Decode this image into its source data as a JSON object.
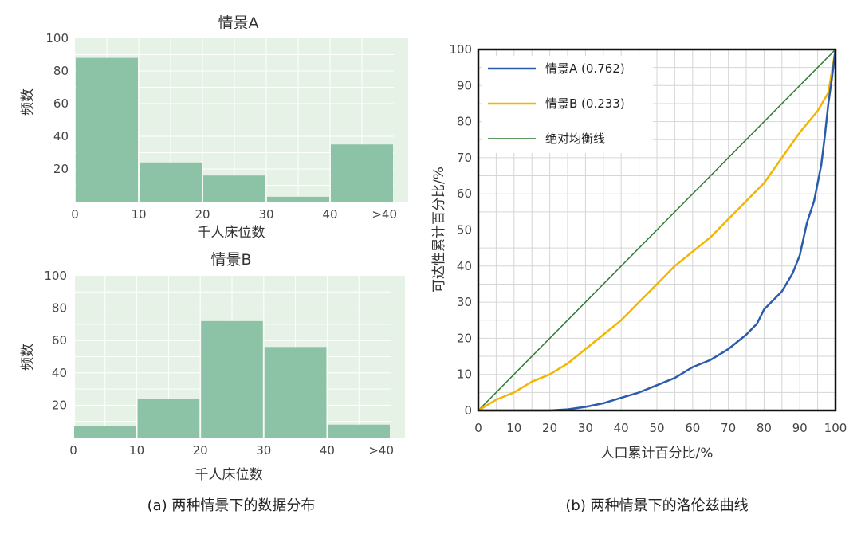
{
  "caption_a": "(a) 两种情景下的数据分布",
  "caption_b": "(b) 两种情景下的洛伦兹曲线",
  "colors": {
    "hist_bg": "#e6f2e6",
    "hist_grid": "#ffffff",
    "bar": "#8cc3a6",
    "scenario_a": "#2a5caa",
    "scenario_b": "#f2b600",
    "equality": "#2f7a2f"
  },
  "chart_data": [
    {
      "type": "bar",
      "title": "情景A",
      "xlabel": "千人床位数",
      "ylabel": "频数",
      "x_ticks": [
        "0",
        "10",
        "20",
        "30",
        "40",
        ">40"
      ],
      "y_ticks": [
        "20",
        "40",
        "60",
        "80",
        "100"
      ],
      "ylim": [
        0,
        100
      ],
      "bin_edges": [
        0,
        10,
        20,
        30,
        40,
        50
      ],
      "values": [
        88,
        24,
        16,
        3,
        35
      ],
      "grid": true
    },
    {
      "type": "bar",
      "title": "情景B",
      "xlabel": "千人床位数",
      "ylabel": "频数",
      "x_ticks": [
        "0",
        "10",
        "20",
        "30",
        "40",
        ">40"
      ],
      "y_ticks": [
        "20",
        "40",
        "60",
        "80",
        "100"
      ],
      "ylim": [
        0,
        100
      ],
      "bin_edges": [
        0,
        10,
        20,
        30,
        40,
        50
      ],
      "values": [
        7,
        24,
        72,
        56,
        8
      ],
      "grid": true
    },
    {
      "type": "line",
      "xlabel": "人口累计百分比/%",
      "ylabel": "可达性累计百分比/%",
      "xlim": [
        0,
        100
      ],
      "ylim": [
        0,
        100
      ],
      "x_ticks": [
        "0",
        "10",
        "20",
        "30",
        "40",
        "50",
        "60",
        "70",
        "80",
        "90",
        "100"
      ],
      "y_ticks": [
        "0",
        "10",
        "20",
        "30",
        "40",
        "50",
        "60",
        "70",
        "80",
        "90",
        "100"
      ],
      "grid": true,
      "legend_position": "top-left",
      "series": [
        {
          "name": "情景A (0.762)",
          "x": [
            0,
            10,
            20,
            25,
            30,
            35,
            40,
            45,
            50,
            55,
            60,
            65,
            70,
            75,
            78,
            80,
            82,
            85,
            88,
            90,
            92,
            94,
            96,
            97,
            98,
            99,
            100
          ],
          "y": [
            0,
            0,
            0,
            0.3,
            1,
            2,
            3.5,
            5,
            7,
            9,
            12,
            14,
            17,
            21,
            24,
            28,
            30,
            33,
            38,
            43,
            52,
            58,
            68,
            76,
            85,
            92,
            100
          ]
        },
        {
          "name": "情景B (0.233)",
          "x": [
            0,
            5,
            10,
            15,
            20,
            25,
            30,
            35,
            40,
            45,
            50,
            55,
            60,
            65,
            70,
            75,
            80,
            85,
            90,
            95,
            98,
            100
          ],
          "y": [
            0,
            3,
            5,
            8,
            10,
            13,
            17,
            21,
            25,
            30,
            35,
            40,
            44,
            48,
            53,
            58,
            63,
            70,
            77,
            83,
            88,
            100
          ]
        },
        {
          "name": "绝对均衡线",
          "x": [
            0,
            100
          ],
          "y": [
            0,
            100
          ]
        }
      ]
    }
  ]
}
